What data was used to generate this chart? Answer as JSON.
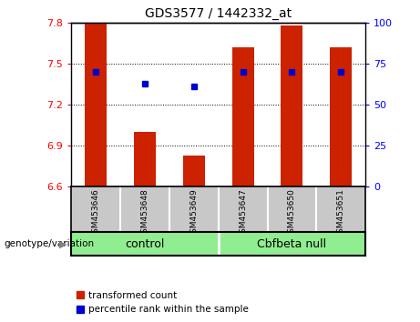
{
  "title": "GDS3577 / 1442332_at",
  "samples": [
    "GSM453646",
    "GSM453648",
    "GSM453649",
    "GSM453647",
    "GSM453650",
    "GSM453651"
  ],
  "bar_values": [
    7.8,
    7.0,
    6.83,
    7.62,
    7.78,
    7.62
  ],
  "bar_bottom": 6.6,
  "percentile_values": [
    7.44,
    7.35,
    7.33,
    7.44,
    7.44,
    7.44
  ],
  "groups": [
    {
      "label": "control",
      "indices": [
        0,
        1,
        2
      ],
      "color": "#90ee90"
    },
    {
      "label": "Cbfbeta null",
      "indices": [
        3,
        4,
        5
      ],
      "color": "#90ee90"
    }
  ],
  "ylim": [
    6.6,
    7.8
  ],
  "yticks_left": [
    6.6,
    6.9,
    7.2,
    7.5,
    7.8
  ],
  "yticks_right": [
    0,
    25,
    50,
    75,
    100
  ],
  "bar_color": "#cc2200",
  "percentile_color": "#0000cc",
  "label_transformed": "transformed count",
  "label_percentile": "percentile rank within the sample",
  "xlabel_group": "genotype/variation",
  "sample_bg": "#c8c8c8",
  "group_bg": "#90ee90",
  "group_divider": 2.5,
  "bar_width": 0.45
}
